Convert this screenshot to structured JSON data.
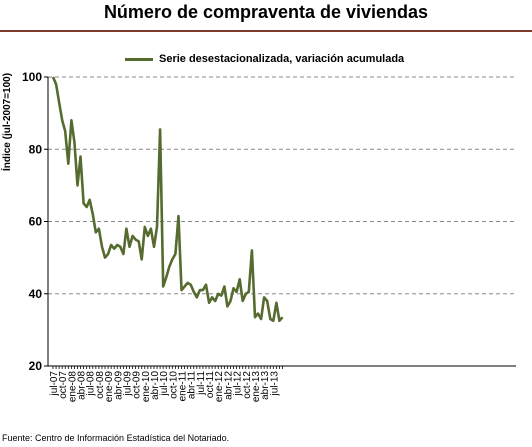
{
  "title": "Número de compraventa de viviendas",
  "source": "Fuente: Centro de Información Estadística del Notariado.",
  "chart_data": {
    "type": "line",
    "title": "Número de compraventa de viviendas",
    "ylabel": "Índice (jul-2007=100)",
    "xlabel": "",
    "ylim": [
      20,
      100
    ],
    "yticks": [
      20,
      40,
      60,
      80,
      100
    ],
    "grid": "horizontal dashed",
    "legend_position": "top-center",
    "line_color": "#556b2f",
    "x_tick_labels": [
      "jul-07",
      "oct-07",
      "ene-08",
      "abr-08",
      "jul-08",
      "oct-08",
      "ene-09",
      "abr-09",
      "jul-09",
      "oct-09",
      "ene-10",
      "abr-10",
      "jul-10",
      "oct-10",
      "ene-11",
      "abr-11",
      "jul-11",
      "oct-11",
      "ene-12",
      "abr-12",
      "jul-12",
      "oct-12",
      "ene-13",
      "abr-13",
      "jul-13"
    ],
    "series": [
      {
        "name": "Serie desestacionalizada, variación acumulada",
        "values": [
          100,
          98,
          93,
          88,
          85,
          76,
          88,
          82,
          70,
          78,
          65,
          64,
          66,
          62,
          57,
          58,
          53,
          50,
          51,
          53.5,
          52.5,
          53.5,
          53,
          51,
          58,
          53,
          56,
          55,
          54.5,
          49.5,
          58.5,
          56,
          58,
          53,
          58.5,
          85.5,
          42,
          44.5,
          47.5,
          49.5,
          51,
          61.5,
          41,
          42,
          43,
          42.5,
          40.5,
          39,
          41,
          41,
          42.5,
          37.5,
          39,
          38,
          40,
          39.5,
          42,
          36.5,
          38,
          41.5,
          40.5,
          44,
          38,
          40,
          40.5,
          52,
          33.5,
          34.5,
          33,
          39,
          38,
          33,
          32.5,
          37.5,
          32.5,
          33.5
        ]
      }
    ]
  }
}
